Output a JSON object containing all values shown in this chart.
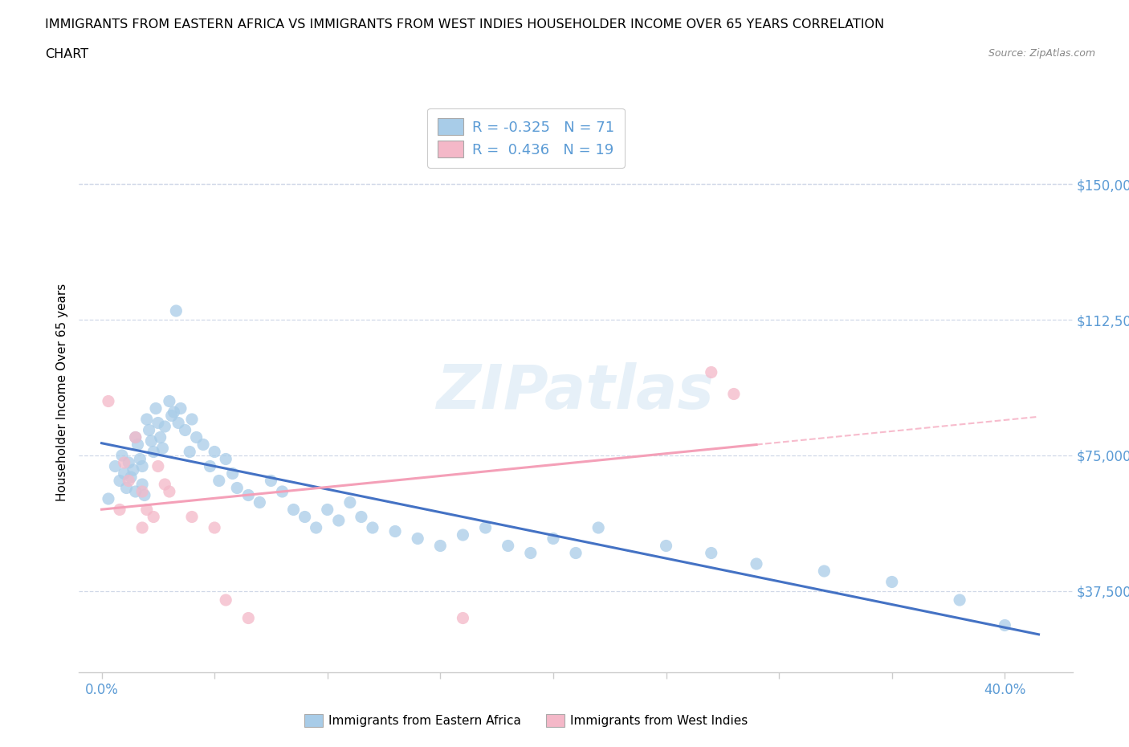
{
  "title_line1": "IMMIGRANTS FROM EASTERN AFRICA VS IMMIGRANTS FROM WEST INDIES HOUSEHOLDER INCOME OVER 65 YEARS CORRELATION",
  "title_line2": "CHART",
  "source": "Source: ZipAtlas.com",
  "ylabel": "Householder Income Over 65 years",
  "x_tick_labels_ends": [
    "0.0%",
    "40.0%"
  ],
  "x_tick_vals": [
    0.0,
    0.05,
    0.1,
    0.15,
    0.2,
    0.25,
    0.3,
    0.35,
    0.4
  ],
  "y_tick_labels": [
    "$37,500",
    "$75,000",
    "$112,500",
    "$150,000"
  ],
  "y_tick_vals": [
    37500,
    75000,
    112500,
    150000
  ],
  "xlim": [
    -0.01,
    0.43
  ],
  "ylim": [
    15000,
    170000
  ],
  "watermark": "ZIPatlas",
  "color_blue": "#a8cce8",
  "color_pink": "#f4b8c8",
  "color_blue_line": "#4472c4",
  "color_pink_line": "#f4a0b8",
  "tick_color": "#5b9bd5",
  "grid_color": "#d0d8e8",
  "eastern_africa_x": [
    0.003,
    0.006,
    0.008,
    0.009,
    0.01,
    0.011,
    0.012,
    0.013,
    0.014,
    0.015,
    0.015,
    0.016,
    0.017,
    0.018,
    0.018,
    0.019,
    0.02,
    0.021,
    0.022,
    0.023,
    0.024,
    0.025,
    0.026,
    0.027,
    0.028,
    0.03,
    0.031,
    0.032,
    0.033,
    0.034,
    0.035,
    0.037,
    0.039,
    0.04,
    0.042,
    0.045,
    0.048,
    0.05,
    0.052,
    0.055,
    0.058,
    0.06,
    0.065,
    0.07,
    0.075,
    0.08,
    0.085,
    0.09,
    0.095,
    0.1,
    0.105,
    0.11,
    0.115,
    0.12,
    0.13,
    0.14,
    0.15,
    0.16,
    0.17,
    0.18,
    0.19,
    0.2,
    0.21,
    0.22,
    0.25,
    0.27,
    0.29,
    0.32,
    0.35,
    0.38,
    0.4
  ],
  "eastern_africa_y": [
    63000,
    72000,
    68000,
    75000,
    70000,
    66000,
    73000,
    69000,
    71000,
    80000,
    65000,
    78000,
    74000,
    67000,
    72000,
    64000,
    85000,
    82000,
    79000,
    76000,
    88000,
    84000,
    80000,
    77000,
    83000,
    90000,
    86000,
    87000,
    115000,
    84000,
    88000,
    82000,
    76000,
    85000,
    80000,
    78000,
    72000,
    76000,
    68000,
    74000,
    70000,
    66000,
    64000,
    62000,
    68000,
    65000,
    60000,
    58000,
    55000,
    60000,
    57000,
    62000,
    58000,
    55000,
    54000,
    52000,
    50000,
    53000,
    55000,
    50000,
    48000,
    52000,
    48000,
    55000,
    50000,
    48000,
    45000,
    43000,
    40000,
    35000,
    28000
  ],
  "west_indies_x": [
    0.003,
    0.008,
    0.01,
    0.012,
    0.015,
    0.018,
    0.02,
    0.023,
    0.025,
    0.028,
    0.03,
    0.04,
    0.055,
    0.065,
    0.27,
    0.28,
    0.018,
    0.05,
    0.16
  ],
  "west_indies_y": [
    90000,
    60000,
    73000,
    68000,
    80000,
    65000,
    60000,
    58000,
    72000,
    67000,
    65000,
    58000,
    35000,
    30000,
    98000,
    92000,
    55000,
    55000,
    30000
  ],
  "blue_trend_x0": 0.0,
  "blue_trend_y0": 75000,
  "blue_trend_x1": 0.41,
  "blue_trend_y1": 37500,
  "pink_trend_x0": 0.0,
  "pink_trend_y0": 55000,
  "pink_trend_x1": 0.41,
  "pink_trend_y1": 105000,
  "pink_trend_solid_x1": 0.29,
  "pink_trend_dashed_x0": 0.29,
  "pink_trend_dashed_x1": 0.415
}
